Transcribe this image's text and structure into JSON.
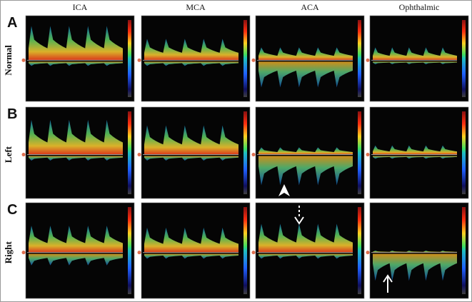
{
  "columns": [
    "ICA",
    "MCA",
    "ACA",
    "Ophthalmic"
  ],
  "rows": [
    {
      "letter": "A",
      "label": "Normal"
    },
    {
      "letter": "B",
      "label": "Left"
    },
    {
      "letter": "C",
      "label": "Right"
    }
  ]
}
